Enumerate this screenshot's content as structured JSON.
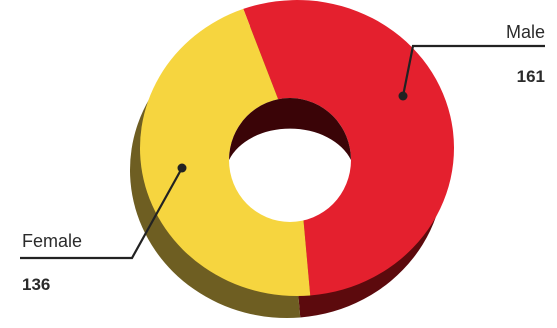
{
  "chart_data": {
    "type": "pie",
    "style": "3d-donut",
    "categories": [
      "Male",
      "Female"
    ],
    "values": [
      161,
      136
    ],
    "colors": [
      "#e4202e",
      "#f6d53f"
    ],
    "side_colors": [
      "#5c0a0d",
      "#6e5e22"
    ],
    "legend": "none",
    "labels": [
      {
        "name": "Male",
        "value": "161"
      },
      {
        "name": "Female",
        "value": "136"
      }
    ]
  }
}
